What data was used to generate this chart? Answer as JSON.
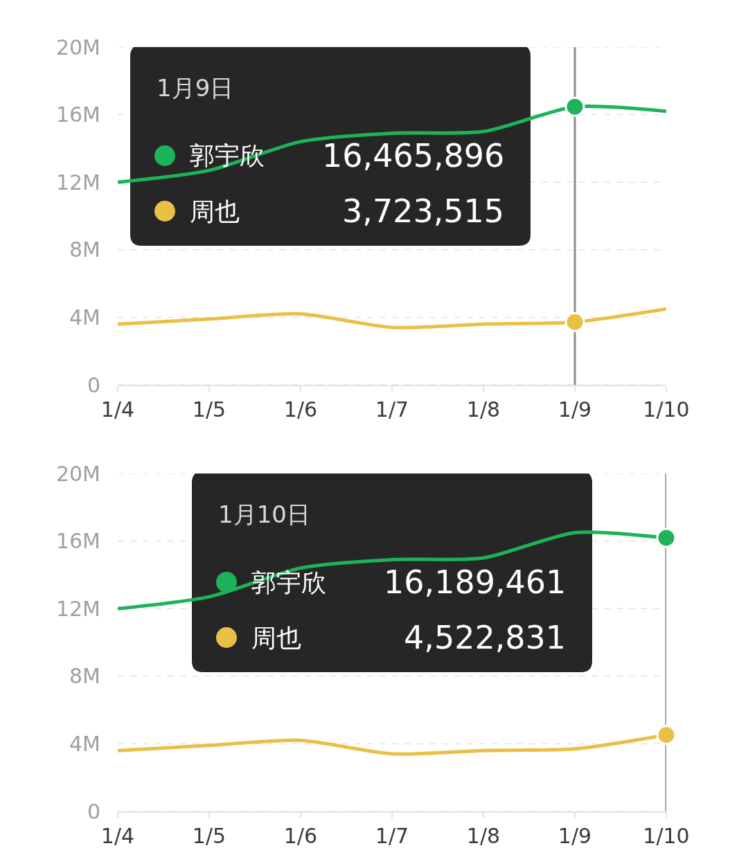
{
  "chart_data": [
    {
      "type": "line",
      "categories": [
        "1/4",
        "1/5",
        "1/6",
        "1/7",
        "1/8",
        "1/9",
        "1/10"
      ],
      "series": [
        {
          "name": "郭宇欣",
          "color": "#1db35a",
          "values": [
            12000000,
            12700000,
            14400000,
            14900000,
            15000000,
            16465896,
            16200000
          ]
        },
        {
          "name": "周也",
          "color": "#e9c046",
          "values": [
            3600000,
            3900000,
            4200000,
            3400000,
            3600000,
            3723515,
            4500000
          ]
        }
      ],
      "ylim": [
        0,
        20000000
      ],
      "yticks": [
        0,
        {
          "value": 4000000,
          "label": "4M"
        },
        {
          "value": 8000000,
          "label": "8M"
        },
        {
          "value": 12000000,
          "label": "12M"
        },
        {
          "value": 16000000,
          "label": "16M"
        },
        {
          "value": 20000000,
          "label": "20M"
        }
      ],
      "grid": "y",
      "legend": "top left",
      "ref_lines": [
        {
          "axis": "x",
          "value": "1/9",
          "color": "#8c8c8c"
        }
      ],
      "annotations": [
        "1月9日",
        "16,465,896",
        "3,723,515"
      ]
    },
    {
      "type": "line",
      "categories": [
        "1/4",
        "1/5",
        "1/6",
        "1/7",
        "1/8",
        "1/9",
        "1/10"
      ],
      "series": [
        {
          "name": "郭宇欣",
          "color": "#1db35a",
          "values": [
            12000000,
            12700000,
            14400000,
            14900000,
            15000000,
            16500000,
            16189461
          ]
        },
        {
          "name": "周也",
          "color": "#e9c046",
          "values": [
            3600000,
            3900000,
            4200000,
            3400000,
            3600000,
            3700000,
            4522831
          ]
        }
      ],
      "ylim": [
        0,
        20000000
      ],
      "yticks": [
        0,
        {
          "value": 4000000,
          "label": "4M"
        },
        {
          "value": 8000000,
          "label": "8M"
        },
        {
          "value": 12000000,
          "label": "12M"
        },
        {
          "value": 16000000,
          "label": "16M"
        },
        {
          "value": 20000000,
          "label": "20M"
        }
      ],
      "grid": "y",
      "legend": "top",
      "ref_lines": [
        {
          "axis": "x",
          "value": "1/10",
          "color": "#8c8c8c"
        }
      ],
      "annotations": [
        "1月10日",
        "16,189,461",
        "4,522,831"
      ]
    }
  ]
}
